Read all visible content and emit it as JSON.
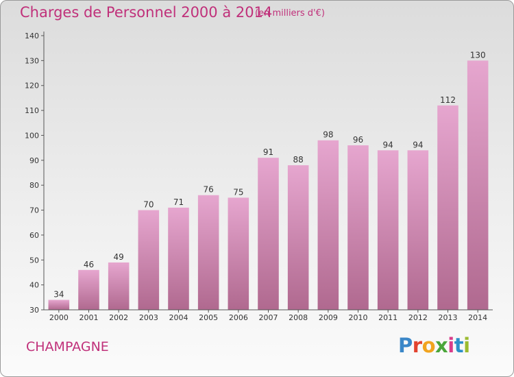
{
  "header": {
    "title": "Charges de Personnel 2000 à 2014",
    "unit": "(en milliers d'€)"
  },
  "footer": {
    "place": "CHAMPAGNE",
    "logo": [
      "P",
      "r",
      "o",
      "x",
      "i",
      "t",
      "i"
    ]
  },
  "colors": {
    "accent": "#c0307a",
    "bar_top": "#e6a6cf",
    "bar_bottom": "#b0698f",
    "logo_letters": [
      "#3b87c8",
      "#e2432f",
      "#f1a41f",
      "#4aa63a",
      "#d93d8a",
      "#2c90c9",
      "#9bbb30"
    ]
  },
  "chart_data": {
    "type": "bar",
    "categories": [
      "2000",
      "2001",
      "2002",
      "2003",
      "2004",
      "2005",
      "2006",
      "2007",
      "2008",
      "2009",
      "2010",
      "2011",
      "2012",
      "2013",
      "2014"
    ],
    "values": [
      34,
      46,
      49,
      70,
      71,
      76,
      75,
      91,
      88,
      98,
      96,
      94,
      94,
      112,
      130
    ],
    "title": "Charges de Personnel 2000 à 2014",
    "xlabel": "",
    "ylabel": "",
    "ylim": [
      30,
      140
    ],
    "yticks": [
      30,
      40,
      50,
      60,
      70,
      80,
      90,
      100,
      110,
      120,
      130,
      140
    ],
    "grid": false,
    "data_labels": true
  }
}
